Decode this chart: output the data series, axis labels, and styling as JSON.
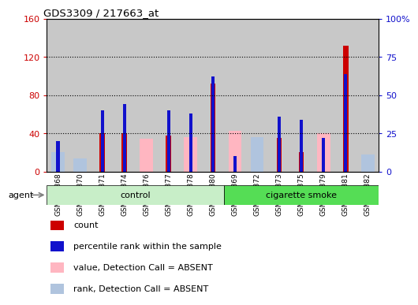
{
  "title": "GDS3309 / 217663_at",
  "samples": [
    "GSM227868",
    "GSM227870",
    "GSM227871",
    "GSM227874",
    "GSM227876",
    "GSM227877",
    "GSM227878",
    "GSM227880",
    "GSM227869",
    "GSM227872",
    "GSM227873",
    "GSM227875",
    "GSM227879",
    "GSM227881",
    "GSM227882"
  ],
  "count": [
    0,
    0,
    40,
    40,
    0,
    38,
    0,
    92,
    0,
    0,
    35,
    20,
    0,
    132,
    0
  ],
  "percentile": [
    20,
    0,
    40,
    44,
    0,
    40,
    38,
    62,
    10,
    0,
    36,
    34,
    22,
    64,
    0
  ],
  "absent_value": [
    18,
    10,
    0,
    0,
    34,
    0,
    36,
    0,
    43,
    36,
    0,
    0,
    40,
    0,
    16
  ],
  "absent_rank": [
    20,
    14,
    0,
    0,
    0,
    0,
    0,
    0,
    0,
    36,
    0,
    0,
    0,
    0,
    18
  ],
  "n_control": 8,
  "left_ylim": [
    0,
    160
  ],
  "right_ylim": [
    0,
    100
  ],
  "left_yticks": [
    0,
    40,
    80,
    120,
    160
  ],
  "right_yticks": [
    0,
    25,
    50,
    75,
    100
  ],
  "left_yticklabels": [
    "0",
    "40",
    "80",
    "120",
    "160"
  ],
  "right_yticklabels": [
    "0",
    "25",
    "50",
    "75",
    "100%"
  ],
  "grid_values": [
    40,
    80,
    120
  ],
  "count_color": "#CC0000",
  "percentile_color": "#1111CC",
  "absent_value_color": "#FFB6C1",
  "absent_rank_color": "#B0C4DE",
  "control_bg": "#C8EEC8",
  "smoke_bg": "#55DD55",
  "bar_bg": "#C8C8C8",
  "agent_label": "agent",
  "control_label": "control",
  "smoke_label": "cigarette smoke",
  "legend_items": [
    {
      "color": "#CC0000",
      "label": "count"
    },
    {
      "color": "#1111CC",
      "label": "percentile rank within the sample"
    },
    {
      "color": "#FFB6C1",
      "label": "value, Detection Call = ABSENT"
    },
    {
      "color": "#B0C4DE",
      "label": "rank, Detection Call = ABSENT"
    }
  ]
}
